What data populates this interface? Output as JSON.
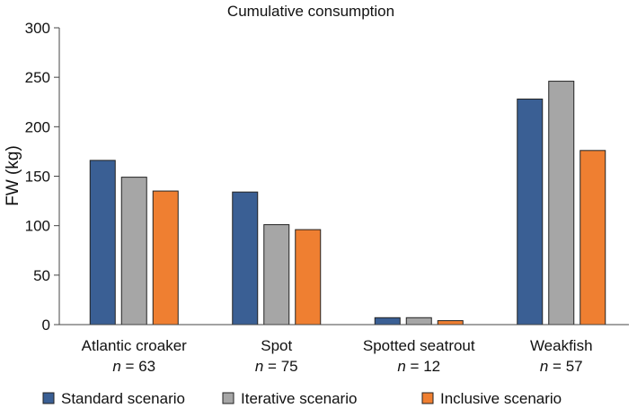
{
  "chart_data": {
    "type": "bar",
    "title": "Cumulative consumption",
    "xlabel": "",
    "ylabel": "FW (kg)",
    "ylim": [
      0,
      300
    ],
    "yticks": [
      0,
      50,
      100,
      150,
      200,
      250,
      300
    ],
    "categories": [
      "Atlantic croaker",
      "Spot",
      "Spotted seatrout",
      "Weakfish"
    ],
    "category_sublabels": [
      {
        "n": "n",
        "rest": " = 63"
      },
      {
        "n": "n",
        "rest": " = 75"
      },
      {
        "n": "n",
        "rest": " = 12"
      },
      {
        "n": "n",
        "rest": " = 57"
      }
    ],
    "series": [
      {
        "name": "Standard scenario",
        "color": "#3a5f94",
        "values": [
          166,
          134,
          7,
          228
        ]
      },
      {
        "name": "Iterative scenario",
        "color": "#a6a6a6",
        "values": [
          149,
          101,
          7,
          246
        ]
      },
      {
        "name": "Inclusive scenario",
        "color": "#ef7f31",
        "values": [
          135,
          96,
          4,
          176
        ]
      }
    ],
    "grid": false,
    "legend_position": "bottom"
  }
}
